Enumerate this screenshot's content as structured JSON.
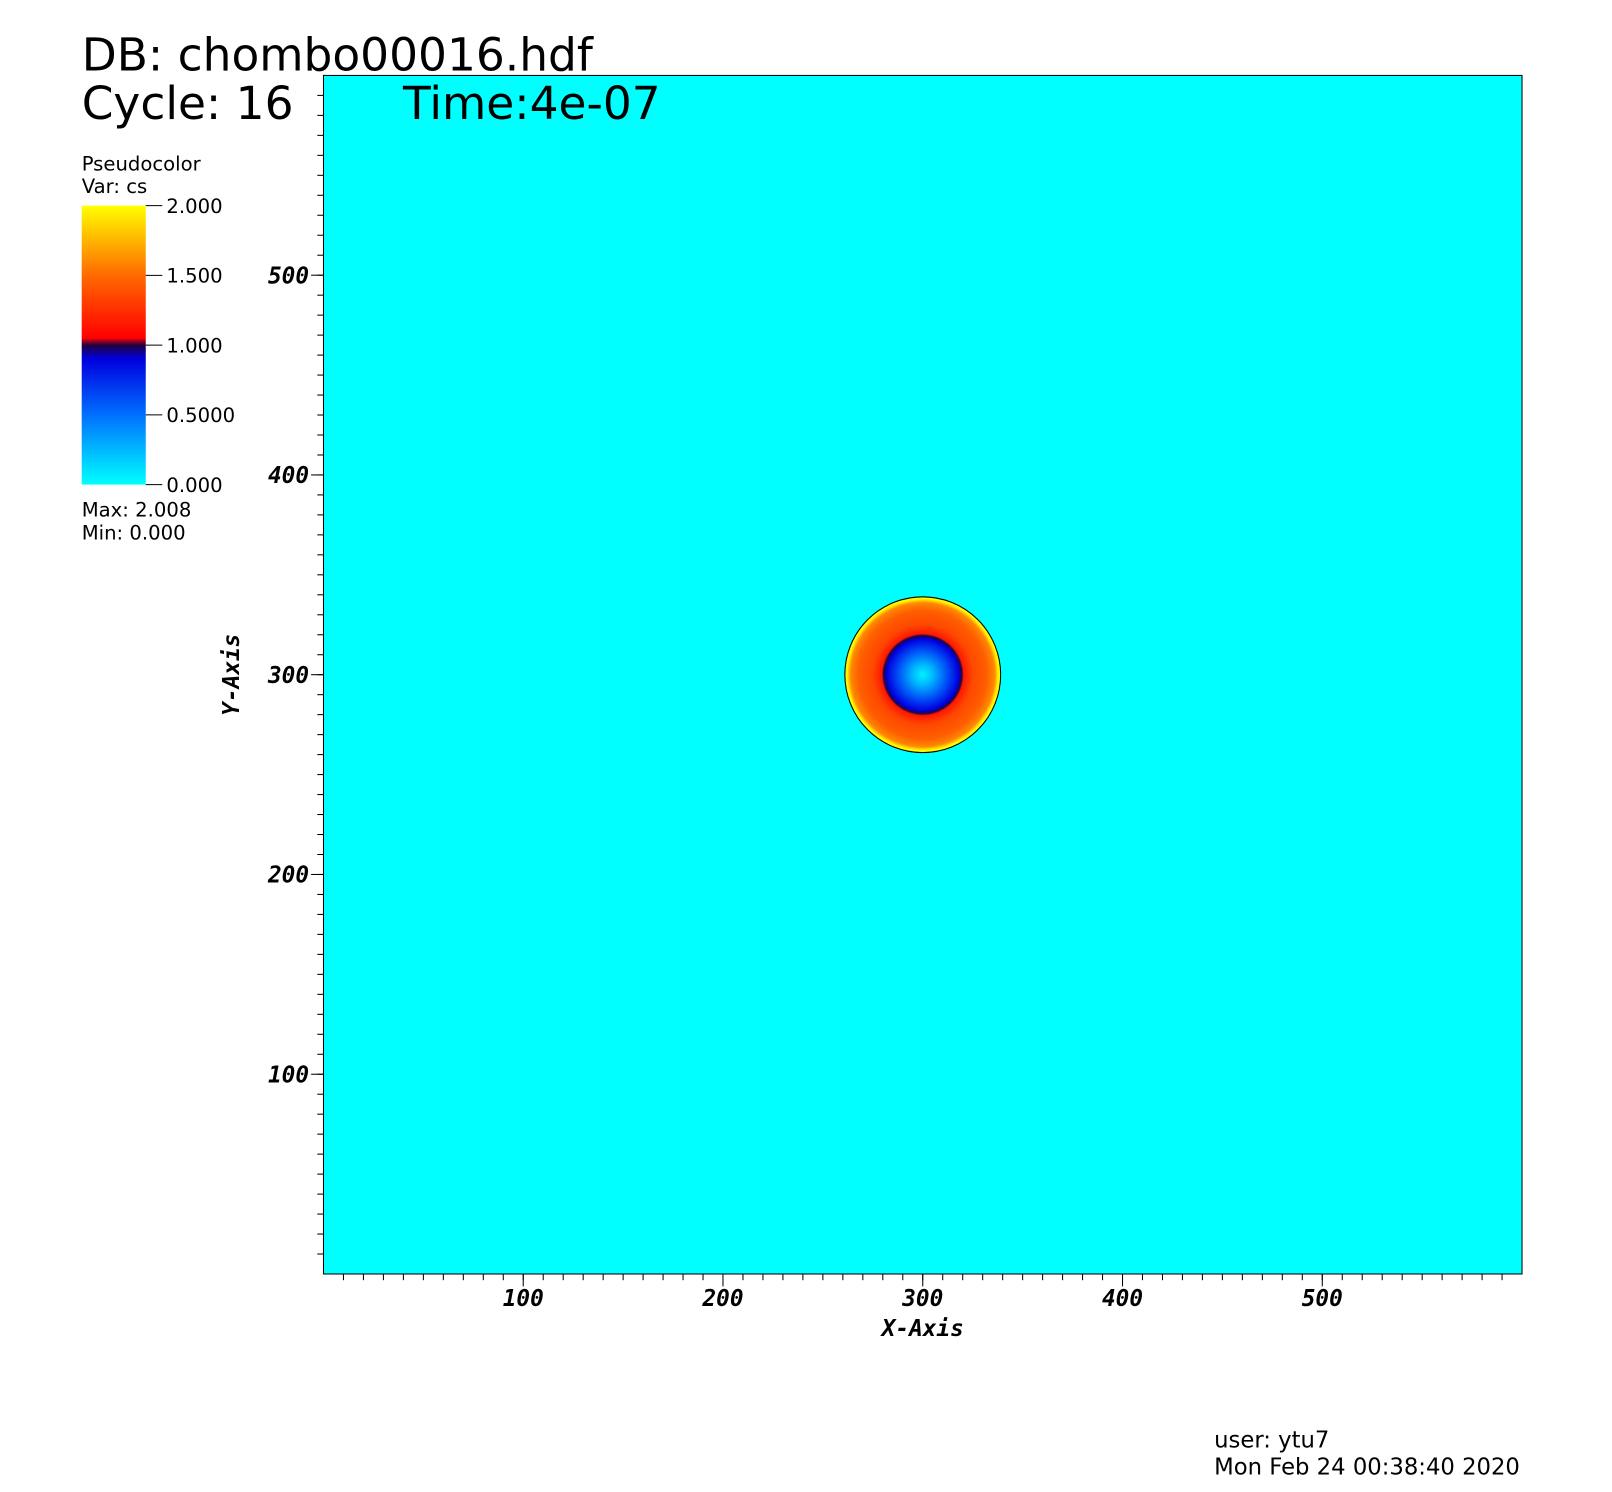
{
  "chart_data": {
    "type": "pseudocolor",
    "title": "DB: chombo00016.hdf",
    "cycle": "Cycle: 16",
    "time": "Time:4e-07",
    "legend_title": "Pseudocolor",
    "legend_var": "Var: cs",
    "legend_max": "Max:  2.008",
    "legend_min": "Min:  0.000",
    "x_label": "X-Axis",
    "y_label": "Y-Axis",
    "xlim": [
      0,
      600
    ],
    "ylim": [
      0,
      600
    ],
    "xticks": [
      100,
      200,
      300,
      400,
      500
    ],
    "yticks": [
      100,
      200,
      300,
      400,
      500
    ],
    "minor_tick_interval": 10,
    "colorbar_ticks": [
      {
        "value": 2,
        "label": "2.000"
      },
      {
        "value": 1.5,
        "label": "1.500"
      },
      {
        "value": 1,
        "label": "1.000"
      },
      {
        "value": 0.5,
        "label": "0.5000"
      },
      {
        "value": 0,
        "label": "0.000"
      }
    ],
    "colormap": [
      {
        "value": 0,
        "color": "#00ffff"
      },
      {
        "value": 0.5,
        "color": "#0070ff"
      },
      {
        "value": 0.9,
        "color": "#0000e0"
      },
      {
        "value": 1.0,
        "color": "#200040"
      },
      {
        "value": 1.05,
        "color": "#ff0000"
      },
      {
        "value": 1.5,
        "color": "#ff6a00"
      },
      {
        "value": 2,
        "color": "#ffff00"
      }
    ],
    "background_value": 0,
    "field": {
      "center": [
        300,
        300
      ],
      "radius": [
        0,
        5,
        12,
        18,
        19.5,
        20.5,
        25,
        32,
        36,
        38,
        39
      ],
      "values": [
        0.05,
        0.25,
        0.6,
        0.9,
        1.0,
        1.15,
        1.35,
        1.45,
        1.6,
        2.0,
        1.9
      ]
    },
    "user": "user: ytu7",
    "date": "Mon Feb 24 00:38:40 2020"
  }
}
